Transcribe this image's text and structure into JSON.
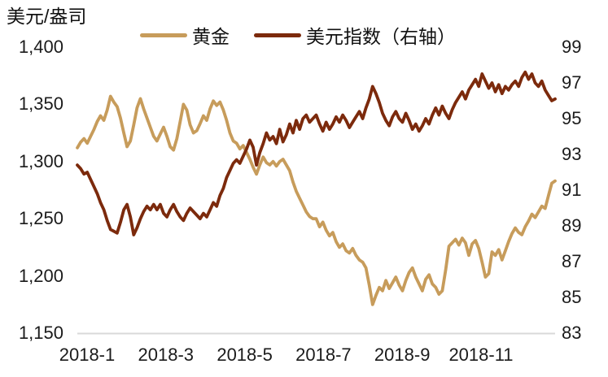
{
  "chart_data": {
    "type": "line",
    "title": "",
    "left_axis": {
      "title": "美元/盎司",
      "max": 1400,
      "min": 1150,
      "tick_labels": [
        "1,400",
        "1,350",
        "1,300",
        "1,250",
        "1,200",
        "1,150"
      ]
    },
    "right_axis": {
      "max": 99,
      "min": 83,
      "tick_labels": [
        "99",
        "97",
        "95",
        "93",
        "91",
        "89",
        "87",
        "85",
        "83"
      ]
    },
    "x_axis": {
      "tick_labels": [
        "2018-1",
        "2018-3",
        "2018-5",
        "2018-7",
        "2018-9",
        "2018-11"
      ],
      "range": [
        "2018-01",
        "2018-12"
      ]
    },
    "grid": "off",
    "legend_position": "top",
    "series": [
      {
        "name": "黄金",
        "axis": "left",
        "color": "#C79C5B",
        "values": [
          1312,
          1317,
          1320,
          1316,
          1322,
          1328,
          1335,
          1340,
          1336,
          1345,
          1357,
          1352,
          1348,
          1338,
          1325,
          1313,
          1318,
          1332,
          1347,
          1355,
          1346,
          1338,
          1330,
          1322,
          1318,
          1324,
          1330,
          1322,
          1313,
          1310,
          1320,
          1335,
          1350,
          1345,
          1332,
          1325,
          1327,
          1333,
          1340,
          1336,
          1346,
          1353,
          1349,
          1352,
          1345,
          1336,
          1325,
          1318,
          1316,
          1311,
          1314,
          1308,
          1302,
          1295,
          1289,
          1297,
          1304,
          1299,
          1297,
          1300,
          1296,
          1300,
          1302,
          1297,
          1292,
          1282,
          1274,
          1268,
          1262,
          1256,
          1252,
          1250,
          1250,
          1243,
          1247,
          1240,
          1235,
          1238,
          1230,
          1225,
          1228,
          1222,
          1220,
          1224,
          1218,
          1214,
          1212,
          1207,
          1192,
          1175,
          1183,
          1190,
          1187,
          1196,
          1189,
          1194,
          1199,
          1192,
          1187,
          1196,
          1203,
          1207,
          1199,
          1193,
          1187,
          1197,
          1201,
          1193,
          1190,
          1184,
          1187,
          1205,
          1226,
          1229,
          1232,
          1227,
          1233,
          1229,
          1218,
          1228,
          1231,
          1224,
          1212,
          1199,
          1202,
          1221,
          1218,
          1223,
          1214,
          1222,
          1230,
          1237,
          1242,
          1238,
          1236,
          1243,
          1248,
          1254,
          1251,
          1256,
          1261,
          1259,
          1270,
          1281,
          1283
        ]
      },
      {
        "name": "美元指数（右轴）",
        "axis": "right",
        "color": "#7C2A0C",
        "values": [
          92.4,
          92.2,
          91.9,
          92.0,
          91.6,
          91.2,
          90.8,
          90.3,
          89.9,
          89.3,
          88.8,
          88.7,
          88.6,
          89.2,
          89.9,
          90.2,
          89.5,
          88.5,
          88.9,
          89.4,
          89.8,
          90.1,
          89.9,
          90.2,
          89.9,
          90.2,
          89.7,
          89.5,
          89.9,
          90.2,
          89.8,
          89.5,
          89.3,
          89.7,
          90.0,
          89.8,
          89.6,
          89.4,
          89.7,
          89.5,
          89.9,
          90.3,
          90.1,
          90.7,
          91.1,
          91.7,
          92.1,
          92.5,
          92.7,
          92.5,
          92.9,
          93.3,
          93.8,
          93.4,
          92.4,
          93.1,
          93.6,
          94.2,
          93.8,
          94.0,
          93.6,
          94.4,
          93.7,
          94.1,
          94.7,
          94.2,
          94.9,
          94.4,
          95.0,
          95.2,
          94.8,
          95.0,
          95.2,
          94.7,
          94.3,
          94.8,
          94.4,
          94.7,
          95.1,
          94.8,
          95.2,
          94.9,
          94.5,
          94.8,
          95.1,
          95.4,
          95.0,
          95.6,
          96.1,
          96.8,
          96.4,
          95.9,
          95.3,
          94.9,
          94.6,
          95.1,
          95.4,
          95.0,
          94.8,
          95.3,
          94.9,
          94.4,
          94.7,
          94.3,
          94.6,
          95.0,
          94.7,
          95.2,
          95.6,
          95.2,
          95.7,
          95.3,
          95.0,
          95.5,
          95.9,
          96.2,
          96.5,
          96.1,
          96.6,
          96.9,
          97.2,
          96.8,
          97.5,
          97.1,
          96.7,
          97.0,
          96.5,
          96.9,
          96.4,
          96.8,
          96.6,
          96.9,
          97.1,
          96.8,
          97.3,
          97.6,
          97.2,
          97.5,
          97.0,
          96.8,
          97.1,
          96.6,
          96.3,
          96.0,
          96.1
        ]
      }
    ],
    "axis_line_color": "#D9D9D9",
    "text_color": "#1b1b1b"
  }
}
